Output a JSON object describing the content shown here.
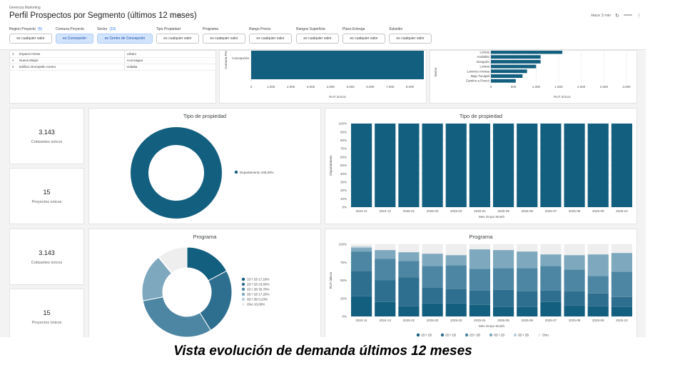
{
  "header": {
    "brand": "Gerencia Marketing",
    "title": "Perfil Prospectos por Segmento (últimos 12 meses)",
    "updated": "Hace 3 min"
  },
  "filters": [
    {
      "label": "Region Proyecto",
      "extra": "(5)",
      "value": "es cualquier valor",
      "active": false
    },
    {
      "label": "Comuna Proyecto",
      "extra": "",
      "value": "es Concepción",
      "active": true
    },
    {
      "label": "Sector",
      "extra": "(10)",
      "value": "es Centro de Concepción",
      "active": true
    },
    {
      "label": "Tipo Propiedad",
      "extra": "",
      "value": "es cualquier valor",
      "active": false
    },
    {
      "label": "Programa",
      "extra": "",
      "value": "es cualquier valor",
      "active": false
    },
    {
      "label": "Rango Precio",
      "extra": "",
      "value": "es cualquier valor",
      "active": false
    },
    {
      "label": "Rangos Superficie",
      "extra": "",
      "value": "es cualquier valor",
      "active": false
    },
    {
      "label": "Plazo Entrega",
      "extra": "",
      "value": "es cualquier valor",
      "active": false
    },
    {
      "label": "Subsidio",
      "extra": "",
      "value": "es cualquier valor",
      "active": false
    }
  ],
  "projects": {
    "rows": [
      {
        "n": "3",
        "name": "Espacio Heras",
        "program": "Urbani"
      },
      {
        "n": "4",
        "name": "Nueva Maipú",
        "program": "Aconcagua"
      },
      {
        "n": "5",
        "name": "Edificio Orompello Centro",
        "program": "Voltalta"
      }
    ]
  },
  "comuna_chart": {
    "ylabel": "Comuna Proy",
    "category": "Concepción",
    "xlabel": "RUT únicos",
    "ticks": [
      "0",
      "1.000",
      "2.000",
      "3.000",
      "4.000",
      "5.000",
      "6.000",
      "7.000",
      "8.000"
    ]
  },
  "sector_chart": {
    "ylabel": "Sector",
    "xlabel": "RUT únicos",
    "categories": [
      "Lomas",
      "Andalién",
      "Nonguén",
      "Lomas",
      "Lorenzo Arenas",
      "Bajo Tucapel",
      "Camino a Penco"
    ],
    "ticks": [
      "0",
      "500",
      "1.000",
      "1.500",
      "2.000",
      "2.500",
      "3.000"
    ]
  },
  "kpis": [
    {
      "value": "3.143",
      "label": "Cotizantes únicos"
    },
    {
      "value": "15",
      "label": "Proyectos únicos"
    },
    {
      "value": "3.143",
      "label": "Cotizantes únicos"
    },
    {
      "value": "15",
      "label": "Proyectos únicos"
    }
  ],
  "donut1": {
    "title": "Tipo de propiedad",
    "legend": "Departamento 100,00%"
  },
  "donut2": {
    "title": "Programa",
    "legend": [
      "1D / 1B 17,18%",
      "2D / 1B 23,93%",
      "2D / 2B 30,76%",
      "3D / 1B 17,20%",
      "3D / 2B 0,23%",
      "Otro 10,69%"
    ]
  },
  "months": [
    "2024-11",
    "2024-12",
    "2025-01",
    "2025-02",
    "2025-03",
    "2025-04",
    "2025-05",
    "2025-06",
    "2025-07",
    "2025-08",
    "2025-09",
    "2025-10"
  ],
  "bar1": {
    "title": "Tipo de propiedad",
    "ylabel": "Departamento",
    "xlabel": "Mes Grupo Month",
    "yticks": [
      "0%",
      "10%",
      "20%",
      "30%",
      "40%",
      "50%",
      "60%",
      "70%",
      "80%",
      "90%",
      "100%"
    ]
  },
  "bar2": {
    "title": "Programa",
    "ylabel": "RUT únicos",
    "xlabel": "Mes Grupo Month",
    "yticks": [
      "0%",
      "25%",
      "50%",
      "75%",
      "100%"
    ],
    "legend": [
      "1D / 1B",
      "2D / 1B",
      "2D / 2B",
      "3D / 1B",
      "3D / 2B",
      "Otro"
    ]
  },
  "caption": "Vista evolución de demanda últimos 12 meses",
  "chart_data": [
    {
      "type": "bar",
      "title": "Comuna Proyecto",
      "categories": [
        "Concepción"
      ],
      "values": [
        8700
      ],
      "xlim": [
        0,
        8700
      ]
    },
    {
      "type": "bar",
      "title": "Sector",
      "categories": [
        "Lomas",
        "Andalién",
        "Nonguén",
        "Lomas",
        "Lorenzo Arenas",
        "Bajo Tucapel",
        "Camino a Penco"
      ],
      "values": [
        1580,
        1100,
        1100,
        1000,
        800,
        700,
        550
      ],
      "xlim": [
        0,
        3000
      ]
    },
    {
      "type": "pie",
      "title": "Tipo de propiedad",
      "categories": [
        "Departamento"
      ],
      "values": [
        100.0
      ]
    },
    {
      "type": "pie",
      "title": "Programa",
      "categories": [
        "1D / 1B",
        "2D / 1B",
        "2D / 2B",
        "3D / 1B",
        "3D / 2B",
        "Otro"
      ],
      "values": [
        17.18,
        23.93,
        30.76,
        17.2,
        0.23,
        10.69
      ]
    },
    {
      "type": "bar",
      "title": "Tipo de propiedad",
      "categories": [
        "2024-11",
        "2024-12",
        "2025-01",
        "2025-02",
        "2025-03",
        "2025-04",
        "2025-05",
        "2025-06",
        "2025-07",
        "2025-08",
        "2025-09",
        "2025-10"
      ],
      "series": [
        {
          "name": "Departamento",
          "values": [
            100,
            100,
            100,
            100,
            100,
            100,
            100,
            100,
            100,
            100,
            100,
            100
          ]
        }
      ],
      "ylim": [
        0,
        100
      ]
    },
    {
      "type": "bar",
      "title": "Programa",
      "categories": [
        "2024-11",
        "2024-12",
        "2025-01",
        "2025-02",
        "2025-03",
        "2025-04",
        "2025-05",
        "2025-06",
        "2025-07",
        "2025-08",
        "2025-09",
        "2025-10"
      ],
      "series": [
        {
          "name": "1D / 1B",
          "values": [
            28,
            20,
            14,
            18,
            18,
            16,
            13,
            13,
            20,
            15,
            14,
            13
          ]
        },
        {
          "name": "2D / 1B",
          "values": [
            35,
            30,
            40,
            22,
            20,
            20,
            24,
            22,
            16,
            20,
            18,
            14
          ]
        },
        {
          "name": "2D / 2B",
          "values": [
            27,
            30,
            23,
            30,
            33,
            30,
            30,
            32,
            34,
            30,
            24,
            35
          ]
        },
        {
          "name": "3D / 1B",
          "values": [
            5,
            12,
            12,
            17,
            14,
            27,
            25,
            23,
            16,
            20,
            30,
            26
          ]
        },
        {
          "name": "3D / 2B",
          "values": [
            2,
            0,
            0,
            0,
            0,
            0,
            0,
            0,
            0,
            0,
            0,
            0
          ]
        },
        {
          "name": "Otro",
          "values": [
            3,
            8,
            11,
            13,
            15,
            7,
            8,
            10,
            14,
            15,
            14,
            12
          ]
        }
      ],
      "ylim": [
        0,
        100
      ]
    }
  ],
  "colors": {
    "primary": "#135f7f",
    "series": [
      "#135f7f",
      "#2e6e8e",
      "#4c86a3",
      "#7ea8be",
      "#b9d0dd",
      "#eeeeee"
    ]
  }
}
